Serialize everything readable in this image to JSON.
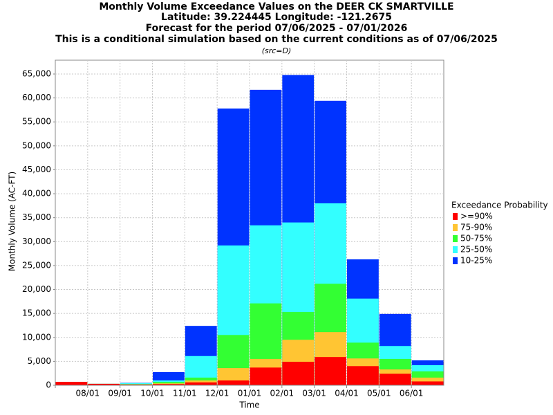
{
  "chart_data": {
    "type": "bar",
    "title": [
      "Monthly Volume Exceedance Values on the DEER CK SMARTVILLE",
      "Latitude: 39.224445 Longitude: -121.2675",
      "Forecast for the period 07/06/2025 - 07/01/2026",
      "This is a conditional simulation based on the current conditions as of 07/06/2025"
    ],
    "subtitle": "(src=D)",
    "x_label": "Time",
    "y_label": "Monthly Volume (AC-FT)",
    "legend_title": "Exceedance Probability",
    "categories": [
      null,
      "08/01",
      "09/01",
      "10/01",
      "11/01",
      "12/01",
      "01/01",
      "02/01",
      "03/01",
      "04/01",
      "05/01",
      "06/01"
    ],
    "series": [
      {
        "name": ">=90%",
        "color": "#ff0000",
        "values": [
          700,
          300,
          150,
          250,
          600,
          1000,
          3700,
          4900,
          5900,
          4000,
          2400,
          800
        ]
      },
      {
        "name": "75-90%",
        "color": "#ffc533",
        "values": [
          700,
          300,
          200,
          400,
          1000,
          3600,
          5500,
          9500,
          11100,
          5600,
          3300,
          1600
        ]
      },
      {
        "name": "50-75%",
        "color": "#33ff33",
        "values": [
          700,
          300,
          250,
          700,
          1600,
          10500,
          17100,
          15300,
          21200,
          8900,
          5500,
          2900
        ]
      },
      {
        "name": "25-50%",
        "color": "#33ffff",
        "values": [
          700,
          300,
          450,
          1000,
          6100,
          29200,
          33400,
          34000,
          38000,
          18100,
          8200,
          4200
        ]
      },
      {
        "name": "10-25%",
        "color": "#0033ff",
        "values": [
          700,
          300,
          500,
          2750,
          12400,
          57800,
          61700,
          64800,
          59400,
          26300,
          14900,
          5200
        ]
      }
    ],
    "ylim": [
      0,
      65000
    ],
    "yticks": [
      0,
      {
        "value": 5000,
        "label": "5,000"
      },
      {
        "value": 10000,
        "label": "10,000"
      },
      {
        "value": 15000,
        "label": "15,000"
      },
      {
        "value": 20000,
        "label": "20,000"
      },
      {
        "value": 25000,
        "label": "25,000"
      },
      {
        "value": 30000,
        "label": "30,000"
      },
      {
        "value": 35000,
        "label": "35,000"
      },
      {
        "value": 40000,
        "label": "40,000"
      },
      {
        "value": 45000,
        "label": "45,000"
      },
      {
        "value": 50000,
        "label": "50,000"
      },
      {
        "value": 55000,
        "label": "55,000"
      },
      {
        "value": 60000,
        "label": "60,000"
      },
      {
        "value": 65000,
        "label": "65,000"
      }
    ],
    "grid": true,
    "legend": "right"
  }
}
